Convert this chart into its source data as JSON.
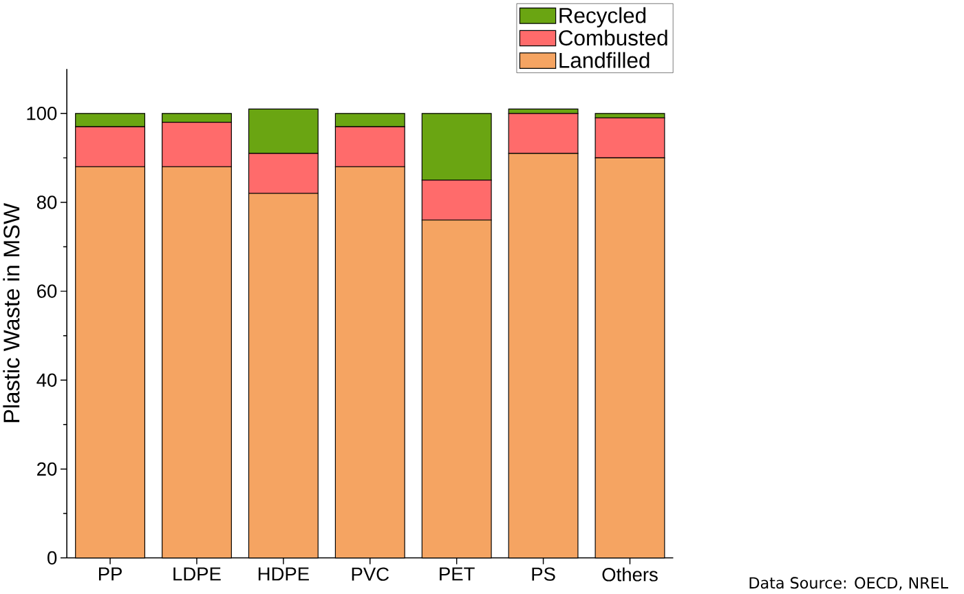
{
  "chart_data": {
    "type": "bar",
    "stacked": true,
    "ylabel": "Plastic Waste in MSW",
    "categories": [
      "PP",
      "LDPE",
      "HDPE",
      "PVC",
      "PET",
      "PS",
      "Others"
    ],
    "series": [
      {
        "name": "Landfilled",
        "color": "#f5a462",
        "values": [
          88,
          88,
          82,
          88,
          76,
          91,
          90
        ]
      },
      {
        "name": "Combusted",
        "color": "#ff6b6b",
        "values": [
          9,
          10,
          9,
          9,
          9,
          9,
          9
        ]
      },
      {
        "name": "Recycled",
        "color": "#6aa512",
        "values": [
          3,
          2,
          10,
          3,
          15,
          1,
          1
        ]
      }
    ],
    "ylim": [
      0,
      110
    ],
    "yticks": [
      0,
      20,
      40,
      60,
      80,
      100
    ],
    "legend": "top right",
    "annotations": [
      "Data Source: OECD, NREL"
    ]
  }
}
